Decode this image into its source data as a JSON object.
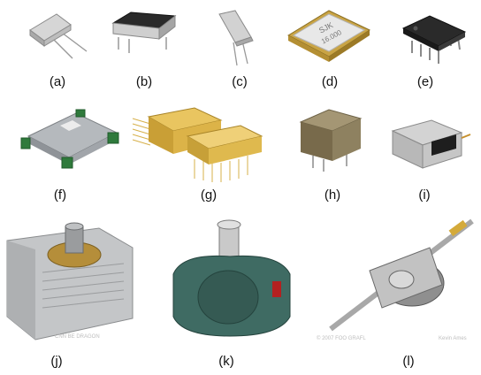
{
  "panels": [
    {
      "label": "(a)",
      "subject": "crystal-hc49-icon"
    },
    {
      "label": "(b)",
      "subject": "metal-can-oscillator-icon"
    },
    {
      "label": "(c)",
      "subject": "crystal-resonator-icon"
    },
    {
      "label": "(d)",
      "subject": "smd-oscillator-icon",
      "marking_top": "SJK",
      "marking_bottom": "16.000"
    },
    {
      "label": "(e)",
      "subject": "dip8-ic-icon"
    },
    {
      "label": "(f)",
      "subject": "ocxo-module-icon"
    },
    {
      "label": "(g)",
      "subject": "gold-hybrid-oscillator-icon"
    },
    {
      "label": "(h)",
      "subject": "metal-box-oscillator-icon"
    },
    {
      "label": "(i)",
      "subject": "rf-oscillator-module-icon"
    },
    {
      "label": "(j)",
      "subject": "magnetron-icon",
      "watermark": "CNN BE DRAGON"
    },
    {
      "label": "(k)",
      "subject": "klystron-icon"
    },
    {
      "label": "(l)",
      "subject": "traveling-wave-tube-icon",
      "watermark_left": "© 2007 FOO GRAFL",
      "watermark_right": "Kevin Ames"
    }
  ],
  "colors": {
    "silver": "#c9c9c9",
    "dark_silver": "#8a8a8a",
    "gold": "#e0b64a",
    "teal": "#3f6b63",
    "green": "#2f7a3c",
    "black": "#1e1e1e"
  }
}
